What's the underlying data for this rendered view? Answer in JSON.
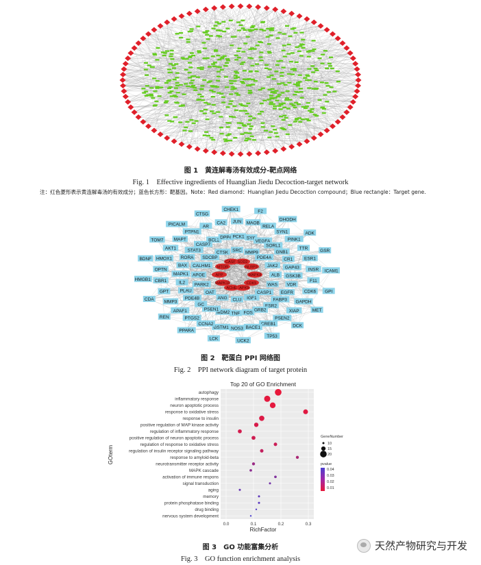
{
  "fig1": {
    "caption_cn": "图 1　黄连解毒汤有效成分-靶点网络",
    "caption_en": "Fig. 1　Effective ingredients of Huanglian Jiedu Decoction-target network",
    "note": "注：红色菱形表示黄连解毒汤的有效成分；蓝色长方形：靶基因。Note：Red diamond：Huanglian Jiedu Decoction compound；Blue rectangle：Target gene.",
    "colors": {
      "compound": "#e0202a",
      "target": "#66cc22",
      "edge": "#9a9a9a"
    }
  },
  "fig2": {
    "caption_cn": "图 2　靶蛋白 PPI 网络图",
    "caption_en": "Fig. 2　PPI network diagram of target protein",
    "node_color": "#8ed4ea",
    "core_color": "#d42a2a",
    "nodes": [
      "F2",
      "DHODH",
      "ADK",
      "GSR",
      "ICAM1",
      "GPI",
      "MET",
      "DCK",
      "TP53",
      "UCK2",
      "LCK",
      "PPARA",
      "REN",
      "CDA",
      "HMGB1",
      "BDNF",
      "TOM7",
      "PICALM",
      "CTSG",
      "CHEK1",
      "JUN",
      "MAOB",
      "RELA",
      "SYN1",
      "PINK1",
      "TTR",
      "ESR1",
      "INSR",
      "F11",
      "CDK6",
      "GAPDH",
      "XIAP",
      "PSEN2",
      "CREB1",
      "BACE1",
      "NOS3",
      "GSTM1",
      "CCNA2",
      "PTGS2",
      "APAF1",
      "MMP3",
      "GPT",
      "CBR1",
      "OPTN",
      "HMOX1",
      "AKT1",
      "MAPT",
      "PTPN1",
      "AR",
      "CA2",
      "SYK",
      "VEGFA",
      "SORL1",
      "GNB1",
      "CR1",
      "GAP43",
      "GSK3B",
      "VDR",
      "EGFR",
      "FABP3",
      "ESR2",
      "GRB2",
      "FOS",
      "TNF",
      "MDM2",
      "PSEN1",
      "GC",
      "PDE4B",
      "PLAU",
      "IL2",
      "MAPK1",
      "BAX",
      "RORA",
      "STAT3",
      "CASP7",
      "BCL2",
      "DPP4",
      "PCK1",
      "SRC",
      "MMP9",
      "PDE4A",
      "JAK2",
      "ALB",
      "WAS",
      "CASP1",
      "IGF1",
      "CLU",
      "ANG",
      "OAT",
      "PARK2",
      "APOE",
      "CALHM1",
      "SDCBP",
      "CTSK"
    ],
    "core_nodes": [
      "MAPK8",
      "CDK5",
      "MAPK9",
      "ACHE",
      "MAPK10",
      "APP",
      "MTOR",
      "CASP3",
      "SOD2",
      "NLRP3"
    ]
  },
  "fig3": {
    "caption_cn": "图 3　GO 功能富集分析",
    "caption_en": "Fig. 3　GO function enrichment analysis",
    "chart_data": {
      "type": "scatter",
      "title": "Top 20 of GO Enrichment",
      "xlabel": "RichFactor",
      "ylabel": "GOterm",
      "xlim": [
        -0.02,
        0.32
      ],
      "xticks": [
        "0.0",
        "0.1",
        "0.2",
        "0.3"
      ],
      "xtick_values": [
        0.0,
        0.1,
        0.2,
        0.3
      ],
      "terms": [
        "autophagy",
        "inflammatory response",
        "neuron apoptotic process",
        "response to oxidative stress",
        "response to insulin",
        "positive regulation of MAP kinase activity",
        "regulation of inflammatory response",
        "positive regulation of neuron apoptotic process",
        "regulation of response to oxidative stress",
        "regulation of insulin receptor signaling pathway",
        "response to amyloid-beta",
        "neurotransmitter receptor activity",
        "MAPK cascade",
        "activation of immune respons",
        "signal transduction",
        "aging",
        "memory",
        "protein phosphatase binding",
        "drug binding",
        "nervous system development"
      ],
      "richfactor": [
        0.19,
        0.15,
        0.17,
        0.29,
        0.13,
        0.11,
        0.05,
        0.1,
        0.18,
        0.13,
        0.26,
        0.1,
        0.09,
        0.18,
        0.16,
        0.05,
        0.12,
        0.12,
        0.11,
        0.09
      ],
      "genenumber": [
        20,
        19,
        18,
        16,
        17,
        15,
        14,
        14,
        13,
        13,
        12,
        12,
        11,
        11,
        10,
        10,
        10,
        10,
        9,
        9
      ],
      "pvalue": [
        0.003,
        0.004,
        0.004,
        0.005,
        0.006,
        0.007,
        0.008,
        0.009,
        0.01,
        0.012,
        0.018,
        0.022,
        0.025,
        0.028,
        0.031,
        0.034,
        0.036,
        0.037,
        0.039,
        0.041
      ],
      "legend_size_title": "GeneNumber",
      "legend_size_values": [
        "10",
        "15",
        "20"
      ],
      "legend_color_title": "pvalue",
      "legend_color_values": [
        "0.04",
        "0.03",
        "0.02",
        "0.01"
      ],
      "colors": {
        "low": "#e8173a",
        "high": "#4b3fd0",
        "panel": "#ebebeb",
        "grid": "#ffffff"
      }
    }
  },
  "watermark": {
    "text": "天然产物研究与开发"
  }
}
